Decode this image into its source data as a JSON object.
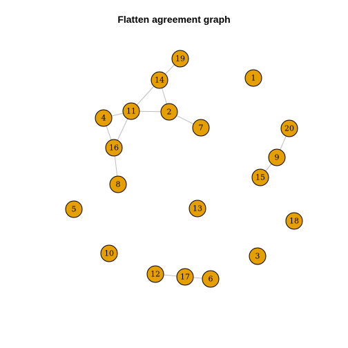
{
  "title": "Flatten agreement graph",
  "colors": {
    "node_fill": "#e69f00",
    "node_stroke": "#000000",
    "edge": "#bdbdbd",
    "background": "#ffffff"
  },
  "nodes": [
    "1",
    "2",
    "3",
    "4",
    "5",
    "6",
    "7",
    "8",
    "9",
    "10",
    "11",
    "12",
    "13",
    "14",
    "15",
    "16",
    "17",
    "18",
    "19",
    "20"
  ],
  "edges": [
    [
      "19",
      "14"
    ],
    [
      "14",
      "11"
    ],
    [
      "14",
      "2"
    ],
    [
      "11",
      "2"
    ],
    [
      "2",
      "7"
    ],
    [
      "4",
      "11"
    ],
    [
      "4",
      "16"
    ],
    [
      "11",
      "16"
    ],
    [
      "16",
      "8"
    ],
    [
      "20",
      "9"
    ],
    [
      "9",
      "15"
    ],
    [
      "12",
      "17"
    ],
    [
      "17",
      "6"
    ]
  ]
}
